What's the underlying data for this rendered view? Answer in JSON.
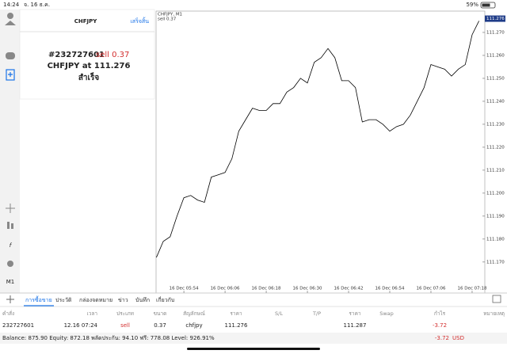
{
  "status_bar": {
    "time": "14:24",
    "date": "จ. 16 ธ.ค.",
    "battery": "59%"
  },
  "order_panel": {
    "symbol": "CHFJPY",
    "done": "เสร็จสิ้น",
    "ticket": "#232727601",
    "action": "sell 0.37",
    "summary": "CHFJPY at 111.276",
    "result": "สำเร็จ"
  },
  "sidebar": {
    "timeframe": "M1"
  },
  "chart_data": {
    "type": "line",
    "title": "CHFJPY, M1",
    "subtitle": "sell 0.37",
    "color": "#000000",
    "x": [
      346,
      348,
      350,
      352,
      354,
      356,
      358,
      360,
      362,
      364,
      366,
      368,
      370,
      372,
      374,
      376,
      378,
      380,
      382,
      384,
      386,
      388,
      390,
      392,
      394,
      396,
      398,
      400,
      402,
      404,
      406,
      408,
      410,
      412,
      414,
      416,
      418,
      420,
      422,
      424,
      426,
      428,
      430,
      432,
      434,
      436,
      438,
      440
    ],
    "values": [
      111.172,
      111.179,
      111.181,
      111.19,
      111.198,
      111.199,
      111.197,
      111.196,
      111.207,
      111.208,
      111.209,
      111.215,
      111.227,
      111.232,
      111.237,
      111.236,
      111.236,
      111.239,
      111.239,
      111.244,
      111.246,
      111.25,
      111.248,
      111.257,
      111.259,
      111.263,
      111.259,
      111.249,
      111.249,
      111.246,
      111.231,
      111.232,
      111.232,
      111.23,
      111.227,
      111.229,
      111.23,
      111.234,
      111.24,
      111.246,
      111.256,
      111.255,
      111.254,
      111.251,
      111.254,
      111.256,
      111.269,
      111.275
    ],
    "last_price": 111.276,
    "xlim": [
      345.9,
      441.7
    ],
    "ylim": [
      111.1565,
      111.2793
    ],
    "xticks": [
      {
        "value": 354,
        "label": "16 Dec 05:54"
      },
      {
        "value": 366,
        "label": "16 Dec 06:06"
      },
      {
        "value": 378,
        "label": "16 Dec 06:18"
      },
      {
        "value": 390,
        "label": "16 Dec 06:30"
      },
      {
        "value": 402,
        "label": "16 Dec 06:42"
      },
      {
        "value": 414,
        "label": "16 Dec 06:54"
      },
      {
        "value": 426,
        "label": "16 Dec 07:06"
      },
      {
        "value": 438,
        "label": "16 Dec 07:18"
      }
    ],
    "yticks": [
      {
        "value": 111.17,
        "label": "111.170"
      },
      {
        "value": 111.18,
        "label": "111.180"
      },
      {
        "value": 111.19,
        "label": "111.190"
      },
      {
        "value": 111.2,
        "label": "111.200"
      },
      {
        "value": 111.21,
        "label": "111.210"
      },
      {
        "value": 111.22,
        "label": "111.220"
      },
      {
        "value": 111.23,
        "label": "111.230"
      },
      {
        "value": 111.24,
        "label": "111.240"
      },
      {
        "value": 111.25,
        "label": "111.250"
      },
      {
        "value": 111.26,
        "label": "111.260"
      },
      {
        "value": 111.27,
        "label": "111.270"
      }
    ],
    "grid": false
  },
  "tabs": [
    "การซื้อขาย",
    "ประวัติ",
    "กล่องจดหมาย",
    "ข่าว",
    "บันทึก",
    "เกี่ยวกับ"
  ],
  "table": {
    "columns": [
      "คำสั่ง",
      "เวลา",
      "ประเภท",
      "ขนาด",
      "สัญลักษณ์",
      "ราคา",
      "S/L",
      "T/P",
      "ราคา",
      "Swap",
      "กำไร",
      "หมายเหตุ"
    ],
    "row": {
      "ticket": "232727601",
      "time": "12.16 07:24",
      "type": "sell",
      "size": "0.37",
      "symbol": "chfjpy",
      "price": "111.276",
      "current_price": "111.287",
      "profit": "-3.72"
    }
  },
  "footer": {
    "balance": "Balance: 875.90 Equity: 872.18 พลัดประกัน: 94.10 ฟรี: 778.08 Level: 926.91%",
    "total": "-3.72",
    "currency": "USD"
  }
}
